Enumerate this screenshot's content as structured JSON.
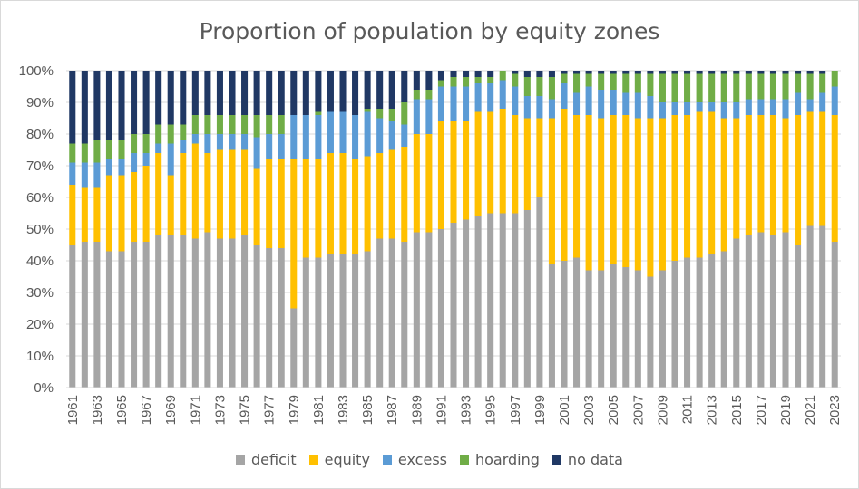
{
  "chart_data": {
    "type": "bar",
    "stacked": true,
    "title": "Proportion of population by equity zones",
    "xlabel": "",
    "ylabel": "",
    "ylim": [
      0,
      1
    ],
    "yticks": [
      "0%",
      "10%",
      "20%",
      "30%",
      "40%",
      "50%",
      "60%",
      "70%",
      "80%",
      "90%",
      "100%"
    ],
    "grid": true,
    "legend_position": "bottom",
    "categories": [
      "1961",
      "1962",
      "1963",
      "1964",
      "1965",
      "1966",
      "1967",
      "1968",
      "1969",
      "1970",
      "1971",
      "1972",
      "1973",
      "1974",
      "1975",
      "1976",
      "1977",
      "1978",
      "1979",
      "1980",
      "1981",
      "1982",
      "1983",
      "1984",
      "1985",
      "1986",
      "1987",
      "1988",
      "1989",
      "1990",
      "1991",
      "1992",
      "1993",
      "1994",
      "1995",
      "1996",
      "1997",
      "1998",
      "1999",
      "2000",
      "2001",
      "2002",
      "2003",
      "2004",
      "2005",
      "2006",
      "2007",
      "2008",
      "2009",
      "2010",
      "2011",
      "2012",
      "2013",
      "2014",
      "2015",
      "2016",
      "2017",
      "2018",
      "2019",
      "2020",
      "2021",
      "2022",
      "2023"
    ],
    "series": [
      {
        "name": "deficit",
        "color": "#a5a5a5",
        "values": [
          0.45,
          0.46,
          0.46,
          0.43,
          0.43,
          0.46,
          0.46,
          0.48,
          0.48,
          0.48,
          0.47,
          0.49,
          0.47,
          0.47,
          0.48,
          0.45,
          0.44,
          0.44,
          0.25,
          0.41,
          0.41,
          0.42,
          0.42,
          0.42,
          0.43,
          0.47,
          0.47,
          0.46,
          0.49,
          0.49,
          0.5,
          0.52,
          0.53,
          0.54,
          0.55,
          0.55,
          0.55,
          0.56,
          0.6,
          0.39,
          0.4,
          0.41,
          0.37,
          0.37,
          0.39,
          0.38,
          0.37,
          0.35,
          0.37,
          0.4,
          0.41,
          0.41,
          0.42,
          0.43,
          0.47,
          0.48,
          0.49,
          0.48,
          0.49,
          0.45,
          0.51,
          0.51,
          0.46
        ]
      },
      {
        "name": "equity",
        "color": "#ffc000",
        "values": [
          0.19,
          0.17,
          0.17,
          0.24,
          0.24,
          0.22,
          0.24,
          0.26,
          0.19,
          0.26,
          0.3,
          0.25,
          0.28,
          0.28,
          0.27,
          0.24,
          0.28,
          0.28,
          0.47,
          0.31,
          0.31,
          0.32,
          0.32,
          0.3,
          0.3,
          0.27,
          0.28,
          0.3,
          0.31,
          0.31,
          0.34,
          0.32,
          0.31,
          0.33,
          0.32,
          0.33,
          0.31,
          0.29,
          0.25,
          0.46,
          0.48,
          0.45,
          0.49,
          0.48,
          0.47,
          0.48,
          0.48,
          0.5,
          0.48,
          0.46,
          0.45,
          0.46,
          0.45,
          0.42,
          0.38,
          0.38,
          0.37,
          0.38,
          0.36,
          0.41,
          0.36,
          0.36,
          0.4
        ]
      },
      {
        "name": "excess",
        "color": "#5b9bd5",
        "values": [
          0.07,
          0.08,
          0.08,
          0.05,
          0.05,
          0.06,
          0.04,
          0.03,
          0.1,
          0.04,
          0.03,
          0.06,
          0.05,
          0.05,
          0.05,
          0.1,
          0.08,
          0.08,
          0.14,
          0.14,
          0.14,
          0.13,
          0.13,
          0.14,
          0.14,
          0.11,
          0.09,
          0.07,
          0.11,
          0.11,
          0.11,
          0.11,
          0.11,
          0.09,
          0.09,
          0.09,
          0.09,
          0.07,
          0.07,
          0.06,
          0.08,
          0.07,
          0.09,
          0.09,
          0.08,
          0.07,
          0.08,
          0.07,
          0.05,
          0.04,
          0.04,
          0.03,
          0.03,
          0.05,
          0.05,
          0.05,
          0.05,
          0.05,
          0.06,
          0.07,
          0.04,
          0.06,
          0.09
        ]
      },
      {
        "name": "hoarding",
        "color": "#70ad47",
        "values": [
          0.06,
          0.06,
          0.07,
          0.06,
          0.06,
          0.06,
          0.06,
          0.06,
          0.06,
          0.05,
          0.06,
          0.06,
          0.06,
          0.06,
          0.06,
          0.07,
          0.06,
          0.06,
          0.0,
          0.0,
          0.01,
          0.0,
          0.0,
          0.0,
          0.01,
          0.03,
          0.04,
          0.07,
          0.03,
          0.03,
          0.02,
          0.03,
          0.03,
          0.02,
          0.02,
          0.03,
          0.04,
          0.06,
          0.06,
          0.07,
          0.03,
          0.06,
          0.04,
          0.05,
          0.05,
          0.06,
          0.06,
          0.07,
          0.09,
          0.09,
          0.09,
          0.09,
          0.09,
          0.09,
          0.09,
          0.08,
          0.08,
          0.08,
          0.08,
          0.06,
          0.08,
          0.06,
          0.05
        ]
      },
      {
        "name": "no data",
        "color": "#203864",
        "values": [
          0.23,
          0.23,
          0.22,
          0.22,
          0.22,
          0.2,
          0.2,
          0.17,
          0.17,
          0.17,
          0.14,
          0.14,
          0.14,
          0.14,
          0.14,
          0.14,
          0.14,
          0.14,
          0.14,
          0.14,
          0.13,
          0.13,
          0.13,
          0.14,
          0.12,
          0.12,
          0.12,
          0.1,
          0.06,
          0.06,
          0.03,
          0.02,
          0.02,
          0.02,
          0.02,
          0.0,
          0.01,
          0.02,
          0.02,
          0.02,
          0.01,
          0.01,
          0.01,
          0.01,
          0.01,
          0.01,
          0.01,
          0.01,
          0.01,
          0.01,
          0.01,
          0.01,
          0.01,
          0.01,
          0.01,
          0.01,
          0.01,
          0.01,
          0.01,
          0.01,
          0.01,
          0.01,
          0.0
        ]
      }
    ]
  }
}
